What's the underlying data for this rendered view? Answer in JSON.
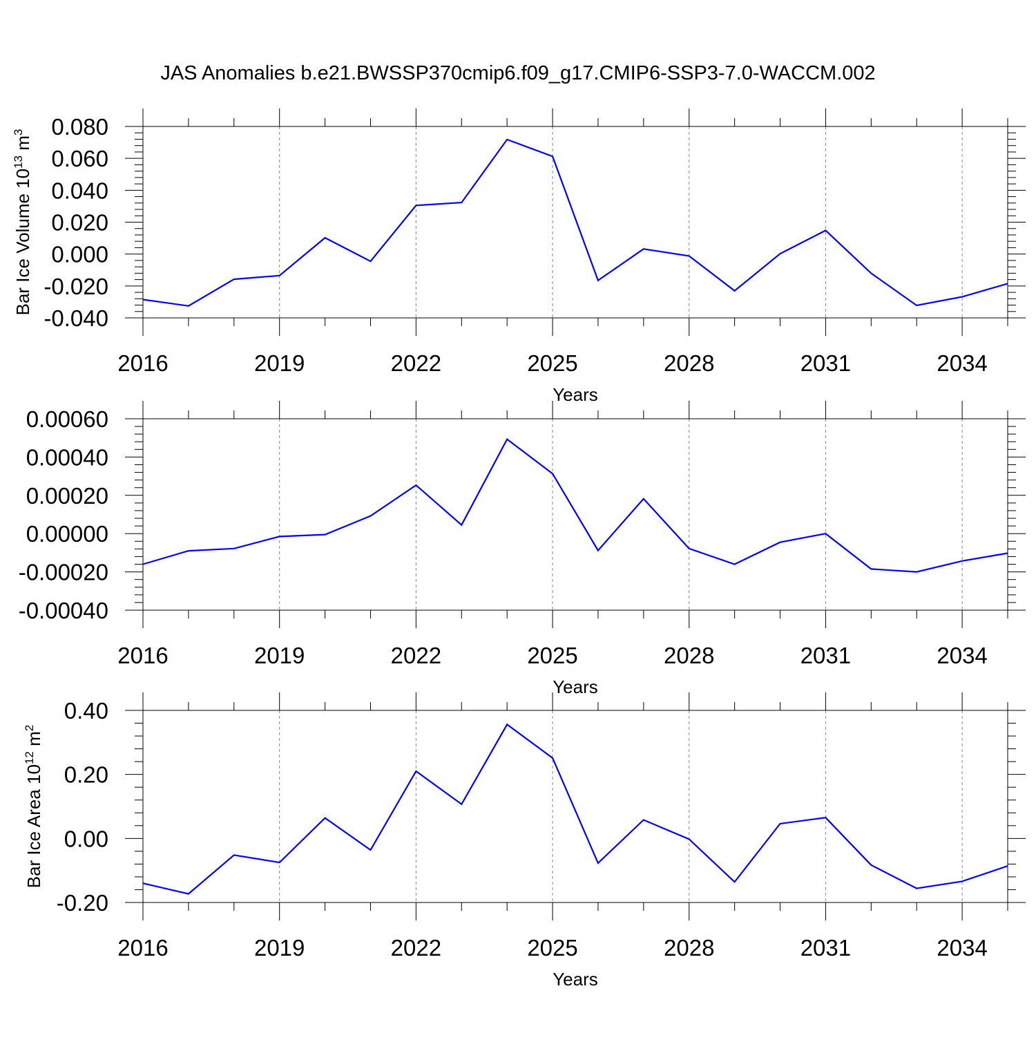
{
  "title": "JAS Anomalies b.e21.BWSSP370cmip6.f09_g17.CMIP6-SSP3-7.0-WACCM.002",
  "chart_data": [
    {
      "type": "line",
      "xlabel": "Years",
      "ylabel_main": "Bar Ice Volume 10",
      "ylabel_exp": "13",
      "ylabel_unit": " m",
      "ylabel_unit_exp": "3",
      "xlim": [
        2016,
        2035
      ],
      "ylim": [
        -0.04,
        0.08
      ],
      "xticks": [
        2016,
        2019,
        2022,
        2025,
        2028,
        2031,
        2034
      ],
      "xtick_labels": [
        "2016",
        "2019",
        "2022",
        "2025",
        "2028",
        "2031",
        "2034"
      ],
      "yticks": [
        -0.04,
        -0.02,
        0.0,
        0.02,
        0.04,
        0.06,
        0.08
      ],
      "ytick_labels": [
        "-0.040",
        "-0.020",
        "0.000",
        "0.020",
        "0.040",
        "0.060",
        "0.080"
      ],
      "x": [
        2016,
        2017,
        2018,
        2019,
        2020,
        2021,
        2022,
        2023,
        2024,
        2025,
        2026,
        2027,
        2028,
        2029,
        2030,
        2031,
        2032,
        2033,
        2034,
        2035
      ],
      "values": [
        -0.0285,
        -0.0325,
        -0.0158,
        -0.0135,
        0.0102,
        -0.0045,
        0.0305,
        0.0323,
        0.0718,
        0.0612,
        -0.0165,
        0.0032,
        -0.0012,
        -0.023,
        0.0002,
        0.0148,
        -0.012,
        -0.0322,
        -0.0268,
        -0.0185
      ],
      "grid": "vertical dashed at major ticks",
      "line_color": "#0000ff"
    },
    {
      "type": "line",
      "xlabel": "Years",
      "xlim": [
        2016,
        2035
      ],
      "ylim": [
        -0.0004,
        0.0006
      ],
      "xticks": [
        2016,
        2019,
        2022,
        2025,
        2028,
        2031,
        2034
      ],
      "xtick_labels": [
        "2016",
        "2019",
        "2022",
        "2025",
        "2028",
        "2031",
        "2034"
      ],
      "yticks": [
        -0.0004,
        -0.0002,
        0.0,
        0.0002,
        0.0004,
        0.0006
      ],
      "ytick_labels": [
        "-0.00040",
        "-0.00020",
        "0.00000",
        "0.00020",
        "0.00040",
        "0.00060"
      ],
      "x": [
        2016,
        2017,
        2018,
        2019,
        2020,
        2021,
        2022,
        2023,
        2024,
        2025,
        2026,
        2027,
        2028,
        2029,
        2030,
        2031,
        2032,
        2033,
        2034,
        2035
      ],
      "values": [
        -0.00016,
        -9e-05,
        -7.8e-05,
        -1.5e-05,
        -5e-06,
        9.2e-05,
        0.000253,
        4.5e-05,
        0.000493,
        0.000313,
        -8.8e-05,
        0.000182,
        -7.8e-05,
        -0.00016,
        -4.5e-05,
        0.0,
        -0.000185,
        -0.0002,
        -0.000143,
        -0.000102
      ],
      "grid": "vertical dashed at major ticks",
      "line_color": "#0000ff"
    },
    {
      "type": "line",
      "xlabel": "Years",
      "ylabel_main": "Bar Ice Area 10",
      "ylabel_exp": "12",
      "ylabel_unit": " m",
      "ylabel_unit_exp": "2",
      "xlim": [
        2016,
        2035
      ],
      "ylim": [
        -0.2,
        0.4
      ],
      "xticks": [
        2016,
        2019,
        2022,
        2025,
        2028,
        2031,
        2034
      ],
      "xtick_labels": [
        "2016",
        "2019",
        "2022",
        "2025",
        "2028",
        "2031",
        "2034"
      ],
      "yticks": [
        -0.2,
        0.0,
        0.2,
        0.4
      ],
      "ytick_labels": [
        "-0.20",
        "0.00",
        "0.20",
        "0.40"
      ],
      "x": [
        2016,
        2017,
        2018,
        2019,
        2020,
        2021,
        2022,
        2023,
        2024,
        2025,
        2026,
        2027,
        2028,
        2029,
        2030,
        2031,
        2032,
        2033,
        2034,
        2035
      ],
      "values": [
        -0.14,
        -0.173,
        -0.052,
        -0.075,
        0.064,
        -0.036,
        0.21,
        0.107,
        0.356,
        0.251,
        -0.077,
        0.058,
        -0.002,
        -0.136,
        0.046,
        0.065,
        -0.083,
        -0.156,
        -0.134,
        -0.086
      ],
      "grid": "vertical dashed at major ticks",
      "line_color": "#0000ff"
    }
  ]
}
